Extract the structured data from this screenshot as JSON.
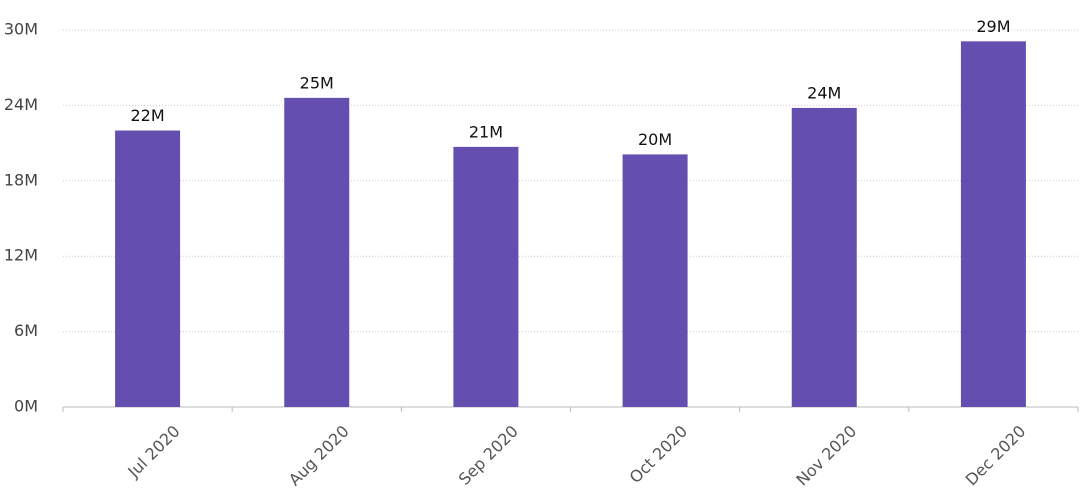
{
  "chart_data": {
    "type": "bar",
    "categories": [
      "Jul 2020",
      "Aug 2020",
      "Sep 2020",
      "Oct 2020",
      "Nov 2020",
      "Dec 2020"
    ],
    "values": [
      22.0,
      24.6,
      20.7,
      20.1,
      23.8,
      29.1
    ],
    "value_labels": [
      "22M",
      "25M",
      "21M",
      "20M",
      "24M",
      "29M"
    ],
    "color": "#644fb0",
    "ylim": [
      0,
      30
    ],
    "yticks": [
      {
        "value": 0,
        "label": "0M"
      },
      {
        "value": 6,
        "label": "6M"
      },
      {
        "value": 12,
        "label": "12M"
      },
      {
        "value": 18,
        "label": "18M"
      },
      {
        "value": 24,
        "label": "24M"
      },
      {
        "value": 30,
        "label": "30M"
      }
    ],
    "grid": true
  }
}
